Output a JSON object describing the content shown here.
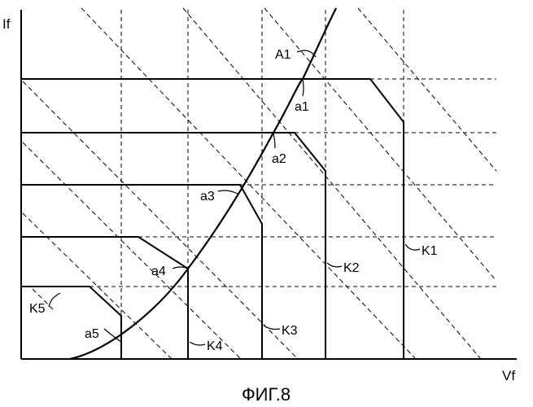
{
  "figure": {
    "caption": "ФИГ.8",
    "axes": {
      "x_label": "Vf",
      "y_label": "If"
    },
    "curve": {
      "label": "A1",
      "points": [
        {
          "label": "a1"
        },
        {
          "label": "a2"
        },
        {
          "label": "a3"
        },
        {
          "label": "a4"
        },
        {
          "label": "a5"
        }
      ]
    },
    "characteristics": [
      {
        "label": "K1"
      },
      {
        "label": "K2"
      },
      {
        "label": "K3"
      },
      {
        "label": "K4"
      },
      {
        "label": "K5"
      }
    ]
  }
}
